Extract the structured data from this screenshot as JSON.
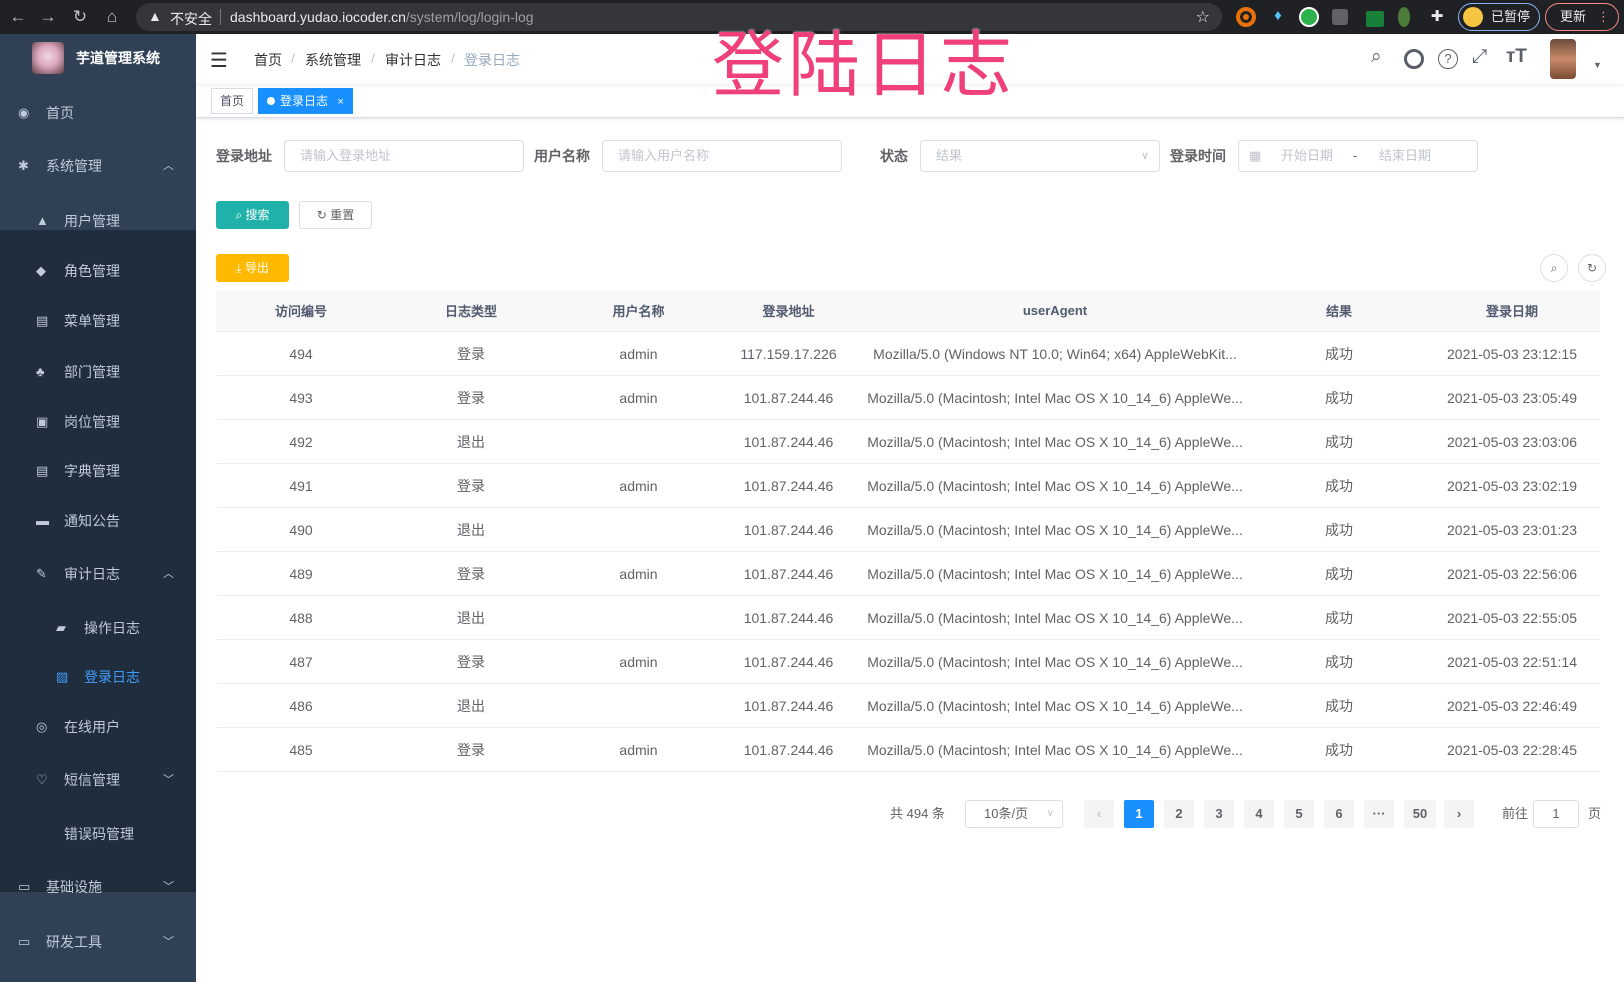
{
  "browser": {
    "insecure_label": "不安全",
    "url_host": "dashboard.yudao.iocoder.cn",
    "url_path": "/system/log/login-log",
    "profile_label": "已暂停",
    "update_label": "更新"
  },
  "overlay_title": "登陆日志",
  "sidebar": {
    "logo_text": "芋道管理系统",
    "items": [
      {
        "label": "首页",
        "icon": "dashboard-icon"
      },
      {
        "label": "系统管理",
        "icon": "gear-icon"
      },
      {
        "label": "用户管理",
        "icon": "user-icon"
      },
      {
        "label": "角色管理",
        "icon": "peoples-icon"
      },
      {
        "label": "菜单管理",
        "icon": "tree-table-icon"
      },
      {
        "label": "部门管理",
        "icon": "tree-icon"
      },
      {
        "label": "岗位管理",
        "icon": "post-icon"
      },
      {
        "label": "字典管理",
        "icon": "dict-icon"
      },
      {
        "label": "通知公告",
        "icon": "message-icon"
      },
      {
        "label": "审计日志",
        "icon": "log-icon"
      },
      {
        "label": "操作日志",
        "icon": "form-icon"
      },
      {
        "label": "登录日志",
        "icon": "logininfor-icon"
      },
      {
        "label": "在线用户",
        "icon": "online-icon"
      },
      {
        "label": "短信管理",
        "icon": "validcode-icon"
      },
      {
        "label": "错误码管理",
        "icon": "code-icon"
      },
      {
        "label": "基础设施",
        "icon": "monitor-icon"
      },
      {
        "label": "研发工具",
        "icon": "tool-icon"
      }
    ]
  },
  "navbar": {
    "breadcrumb": [
      "首页",
      "系统管理",
      "审计日志",
      "登录日志"
    ]
  },
  "tags": {
    "home": "首页",
    "current": "登录日志",
    "close": "×"
  },
  "filters": {
    "ip_label": "登录地址",
    "ip_placeholder": "请输入登录地址",
    "user_label": "用户名称",
    "user_placeholder": "请输入用户名称",
    "status_label": "状态",
    "status_placeholder": "结果",
    "time_label": "登录时间",
    "start_placeholder": "开始日期",
    "range_sep": "-",
    "end_placeholder": "结束日期",
    "search": "搜索",
    "reset": "重置",
    "export": "导出"
  },
  "table": {
    "headers": [
      "访问编号",
      "日志类型",
      "用户名称",
      "登录地址",
      "userAgent",
      "结果",
      "登录日期"
    ],
    "rows": [
      [
        "494",
        "登录",
        "admin",
        "117.159.17.226",
        "Mozilla/5.0 (Windows NT 10.0; Win64; x64) AppleWebKit...",
        "成功",
        "2021-05-03 23:12:15"
      ],
      [
        "493",
        "登录",
        "admin",
        "101.87.244.46",
        "Mozilla/5.0 (Macintosh; Intel Mac OS X 10_14_6) AppleWe...",
        "成功",
        "2021-05-03 23:05:49"
      ],
      [
        "492",
        "退出",
        "",
        "101.87.244.46",
        "Mozilla/5.0 (Macintosh; Intel Mac OS X 10_14_6) AppleWe...",
        "成功",
        "2021-05-03 23:03:06"
      ],
      [
        "491",
        "登录",
        "admin",
        "101.87.244.46",
        "Mozilla/5.0 (Macintosh; Intel Mac OS X 10_14_6) AppleWe...",
        "成功",
        "2021-05-03 23:02:19"
      ],
      [
        "490",
        "退出",
        "",
        "101.87.244.46",
        "Mozilla/5.0 (Macintosh; Intel Mac OS X 10_14_6) AppleWe...",
        "成功",
        "2021-05-03 23:01:23"
      ],
      [
        "489",
        "登录",
        "admin",
        "101.87.244.46",
        "Mozilla/5.0 (Macintosh; Intel Mac OS X 10_14_6) AppleWe...",
        "成功",
        "2021-05-03 22:56:06"
      ],
      [
        "488",
        "退出",
        "",
        "101.87.244.46",
        "Mozilla/5.0 (Macintosh; Intel Mac OS X 10_14_6) AppleWe...",
        "成功",
        "2021-05-03 22:55:05"
      ],
      [
        "487",
        "登录",
        "admin",
        "101.87.244.46",
        "Mozilla/5.0 (Macintosh; Intel Mac OS X 10_14_6) AppleWe...",
        "成功",
        "2021-05-03 22:51:14"
      ],
      [
        "486",
        "退出",
        "",
        "101.87.244.46",
        "Mozilla/5.0 (Macintosh; Intel Mac OS X 10_14_6) AppleWe...",
        "成功",
        "2021-05-03 22:46:49"
      ],
      [
        "485",
        "登录",
        "admin",
        "101.87.244.46",
        "Mozilla/5.0 (Macintosh; Intel Mac OS X 10_14_6) AppleWe...",
        "成功",
        "2021-05-03 22:28:45"
      ]
    ]
  },
  "pagination": {
    "total_label": "共 494 条",
    "page_size": "10条/页",
    "prev": "‹",
    "pages": [
      "1",
      "2",
      "3",
      "4",
      "5",
      "6",
      "···",
      "50"
    ],
    "current_page": "1",
    "next": "›",
    "goto_label": "前往",
    "goto_value": "1",
    "page_suffix": "页"
  },
  "colors": {
    "sidebar_bg": "#304156",
    "submenu_bg": "#1f2d3d",
    "primary": "#1890ff",
    "search_button": "#20b2aa",
    "export_button": "#ffba00",
    "overlay_title": "#f0407a"
  }
}
